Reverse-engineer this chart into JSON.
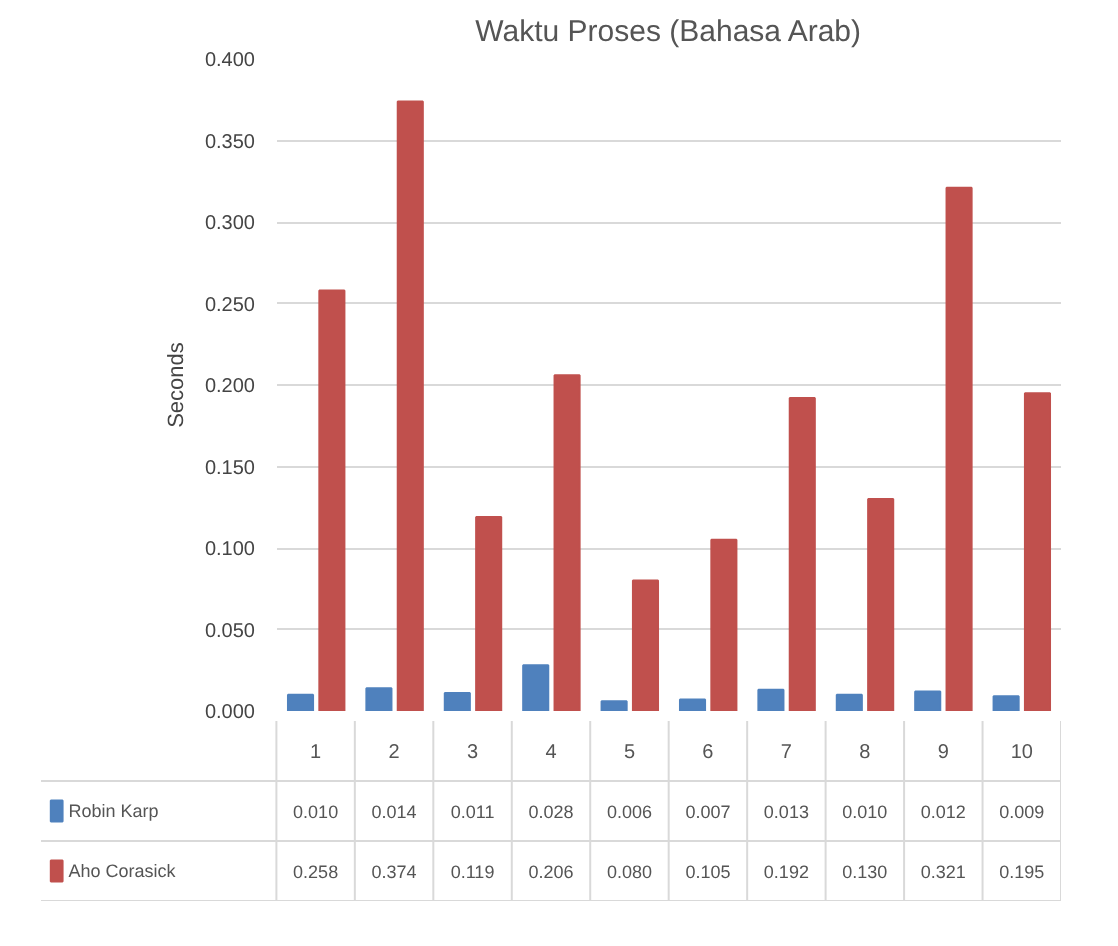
{
  "chart_data": {
    "type": "bar",
    "title": "Waktu Proses (Bahasa Arab)",
    "ylabel": "Seconds",
    "categories": [
      "1",
      "2",
      "3",
      "4",
      "5",
      "6",
      "7",
      "8",
      "9",
      "10"
    ],
    "series": [
      {
        "name": "Robin Karp",
        "color": "#4f81bd",
        "values": [
          0.01,
          0.014,
          0.011,
          0.028,
          0.006,
          0.007,
          0.013,
          0.01,
          0.012,
          0.009
        ],
        "value_labels": [
          "0.010",
          "0.014",
          "0.011",
          "0.028",
          "0.006",
          "0.007",
          "0.013",
          "0.010",
          "0.012",
          "0.009"
        ]
      },
      {
        "name": "Aho Corasick",
        "color": "#c0504d",
        "values": [
          0.258,
          0.374,
          0.119,
          0.206,
          0.08,
          0.105,
          0.192,
          0.13,
          0.321,
          0.195
        ],
        "value_labels": [
          "0.258",
          "0.374",
          "0.119",
          "0.206",
          "0.080",
          "0.105",
          "0.192",
          "0.130",
          "0.321",
          "0.195"
        ]
      }
    ],
    "ylim": [
      0,
      0.4
    ],
    "yticks": [
      {
        "value": 0,
        "label": "0.000"
      },
      {
        "value": 0.05,
        "label": "0.050"
      },
      {
        "value": 0.1,
        "label": "0.100"
      },
      {
        "value": 0.15,
        "label": "0.150"
      },
      {
        "value": 0.2,
        "label": "0.200"
      },
      {
        "value": 0.25,
        "label": "0.250"
      },
      {
        "value": 0.3,
        "label": "0.300"
      },
      {
        "value": 0.35,
        "label": "0.350"
      },
      {
        "value": 0.4,
        "label": "0.400"
      }
    ],
    "grid": "y",
    "legend": "bottom"
  }
}
